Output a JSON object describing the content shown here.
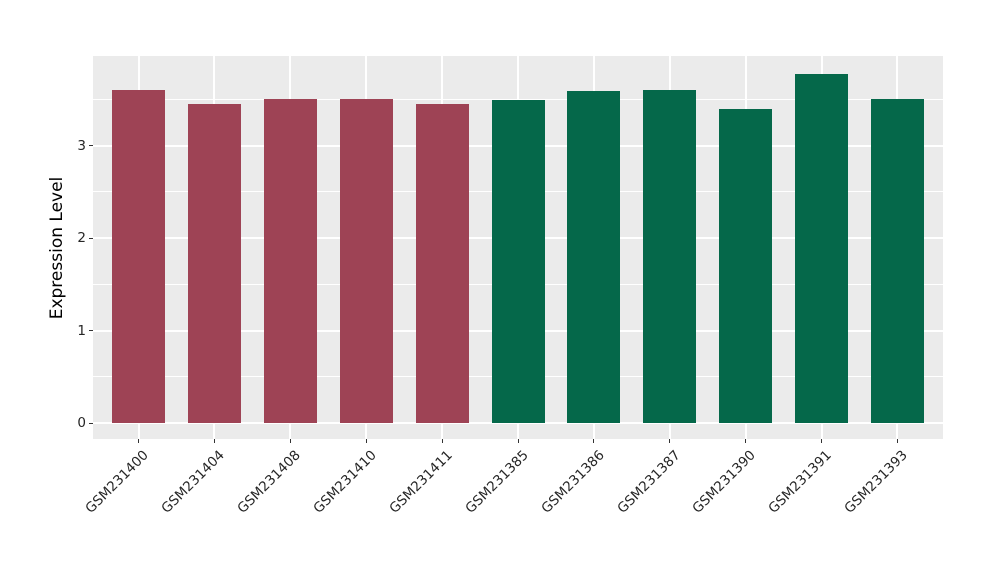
{
  "figure": {
    "background": "#ffffff",
    "panel_background": "#ebebeb",
    "grid_color": "#ffffff",
    "axis_text_color": "#262626",
    "axis_title_color": "#000000",
    "red_group_color": "#9e4355",
    "green_group_color": "#05684a"
  },
  "chart_data": {
    "type": "bar",
    "title": "",
    "xlabel": "",
    "ylabel": "Expression Level",
    "categories": [
      "GSM231400",
      "GSM231404",
      "GSM231408",
      "GSM231410",
      "GSM231411",
      "GSM231385",
      "GSM231386",
      "GSM231387",
      "GSM231390",
      "GSM231391",
      "GSM231393"
    ],
    "values": [
      3.6,
      3.45,
      3.51,
      3.51,
      3.45,
      3.49,
      3.59,
      3.6,
      3.4,
      3.78,
      3.5
    ],
    "bar_colors": [
      "#9e4355",
      "#9e4355",
      "#9e4355",
      "#9e4355",
      "#9e4355",
      "#05684a",
      "#05684a",
      "#05684a",
      "#05684a",
      "#05684a",
      "#05684a"
    ],
    "groups": [
      {
        "color": "#9e4355",
        "categories": [
          "GSM231400",
          "GSM231404",
          "GSM231408",
          "GSM231410",
          "GSM231411"
        ]
      },
      {
        "color": "#05684a",
        "categories": [
          "GSM231385",
          "GSM231386",
          "GSM231387",
          "GSM231390",
          "GSM231391",
          "GSM231393"
        ]
      }
    ],
    "yticks": [
      "0",
      "1",
      "2",
      "3"
    ],
    "ytick_values": [
      0,
      1,
      2,
      3
    ],
    "minor_gridline_values": [
      0.5,
      1.5,
      2.5,
      3.5
    ],
    "ylim": [
      0,
      3.97
    ],
    "grid": "white major and minor horizontal lines, white vertical lines at category centers, drawn on gray panel",
    "legend": null,
    "bar_orientation": "vertical"
  }
}
